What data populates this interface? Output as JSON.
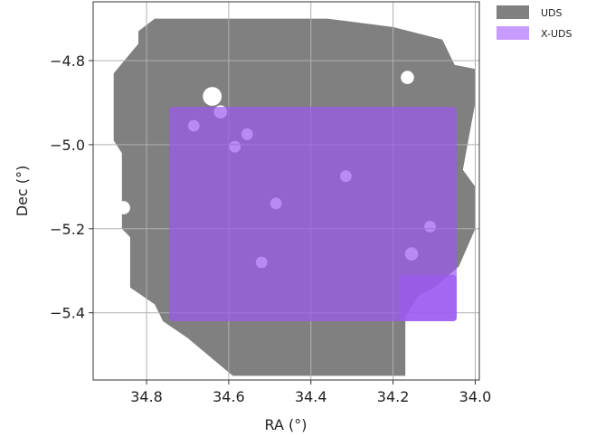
{
  "chart_data": {
    "type": "area",
    "xlabel": "RA (°)",
    "ylabel": "Dec (°)",
    "x_axis_reversed": true,
    "xlim": [
      34.93,
      33.99
    ],
    "ylim": [
      -5.56,
      -4.66
    ],
    "xticks": [
      34.8,
      34.6,
      34.4,
      34.2,
      34.0
    ],
    "xtick_labels": [
      "34.8",
      "34.6",
      "34.4",
      "34.2",
      "34.0"
    ],
    "yticks": [
      -4.8,
      -5.0,
      -5.2,
      -5.4
    ],
    "ytick_labels": [
      "−4.8",
      "−5.0",
      "−5.2",
      "−5.4"
    ],
    "grid": true,
    "legend_position": "outside-top-right",
    "series": [
      {
        "name": "UDS",
        "color": "#808080",
        "outline": [
          [
            34.78,
            -4.7
          ],
          [
            34.36,
            -4.7
          ],
          [
            34.2,
            -4.72
          ],
          [
            34.08,
            -4.75
          ],
          [
            34.05,
            -4.81
          ],
          [
            34.0,
            -4.82
          ],
          [
            34.0,
            -4.9
          ],
          [
            34.03,
            -5.06
          ],
          [
            34.0,
            -5.1
          ],
          [
            34.0,
            -5.2
          ],
          [
            34.04,
            -5.29
          ],
          [
            34.1,
            -5.34
          ],
          [
            34.14,
            -5.36
          ],
          [
            34.17,
            -5.41
          ],
          [
            34.17,
            -5.55
          ],
          [
            34.59,
            -5.55
          ],
          [
            34.7,
            -5.46
          ],
          [
            34.76,
            -5.42
          ],
          [
            34.78,
            -5.38
          ],
          [
            34.84,
            -5.34
          ],
          [
            34.84,
            -5.22
          ],
          [
            34.86,
            -5.2
          ],
          [
            34.86,
            -5.02
          ],
          [
            34.88,
            -4.99
          ],
          [
            34.88,
            -4.83
          ],
          [
            34.82,
            -4.76
          ],
          [
            34.82,
            -4.73
          ]
        ],
        "holes": [
          {
            "ra": 34.64,
            "dec": -4.885,
            "size": 0.023
          },
          {
            "ra": 34.165,
            "dec": -4.84,
            "size": 0.016
          },
          {
            "ra": 34.856,
            "dec": -5.15,
            "size": 0.016
          },
          {
            "ra": 34.62,
            "dec": -4.922,
            "size": 0.016
          },
          {
            "ra": 34.685,
            "dec": -4.955,
            "size": 0.014
          },
          {
            "ra": 34.555,
            "dec": -4.975,
            "size": 0.014
          },
          {
            "ra": 34.585,
            "dec": -5.005,
            "size": 0.014
          },
          {
            "ra": 34.315,
            "dec": -5.075,
            "size": 0.014
          },
          {
            "ra": 34.485,
            "dec": -5.14,
            "size": 0.014
          },
          {
            "ra": 34.11,
            "dec": -5.195,
            "size": 0.014
          },
          {
            "ra": 34.155,
            "dec": -5.26,
            "size": 0.016
          },
          {
            "ra": 34.52,
            "dec": -5.28,
            "size": 0.014
          }
        ]
      },
      {
        "name": "X-UDS",
        "color": "#9b59f0",
        "opacity": 0.7,
        "rectangles": [
          {
            "ra_min": 34.045,
            "ra_max": 34.745,
            "dec_min": -5.42,
            "dec_max": -4.91
          },
          {
            "ra_min": 34.045,
            "ra_max": 34.185,
            "dec_min": -5.42,
            "dec_max": -5.31
          }
        ]
      }
    ]
  }
}
